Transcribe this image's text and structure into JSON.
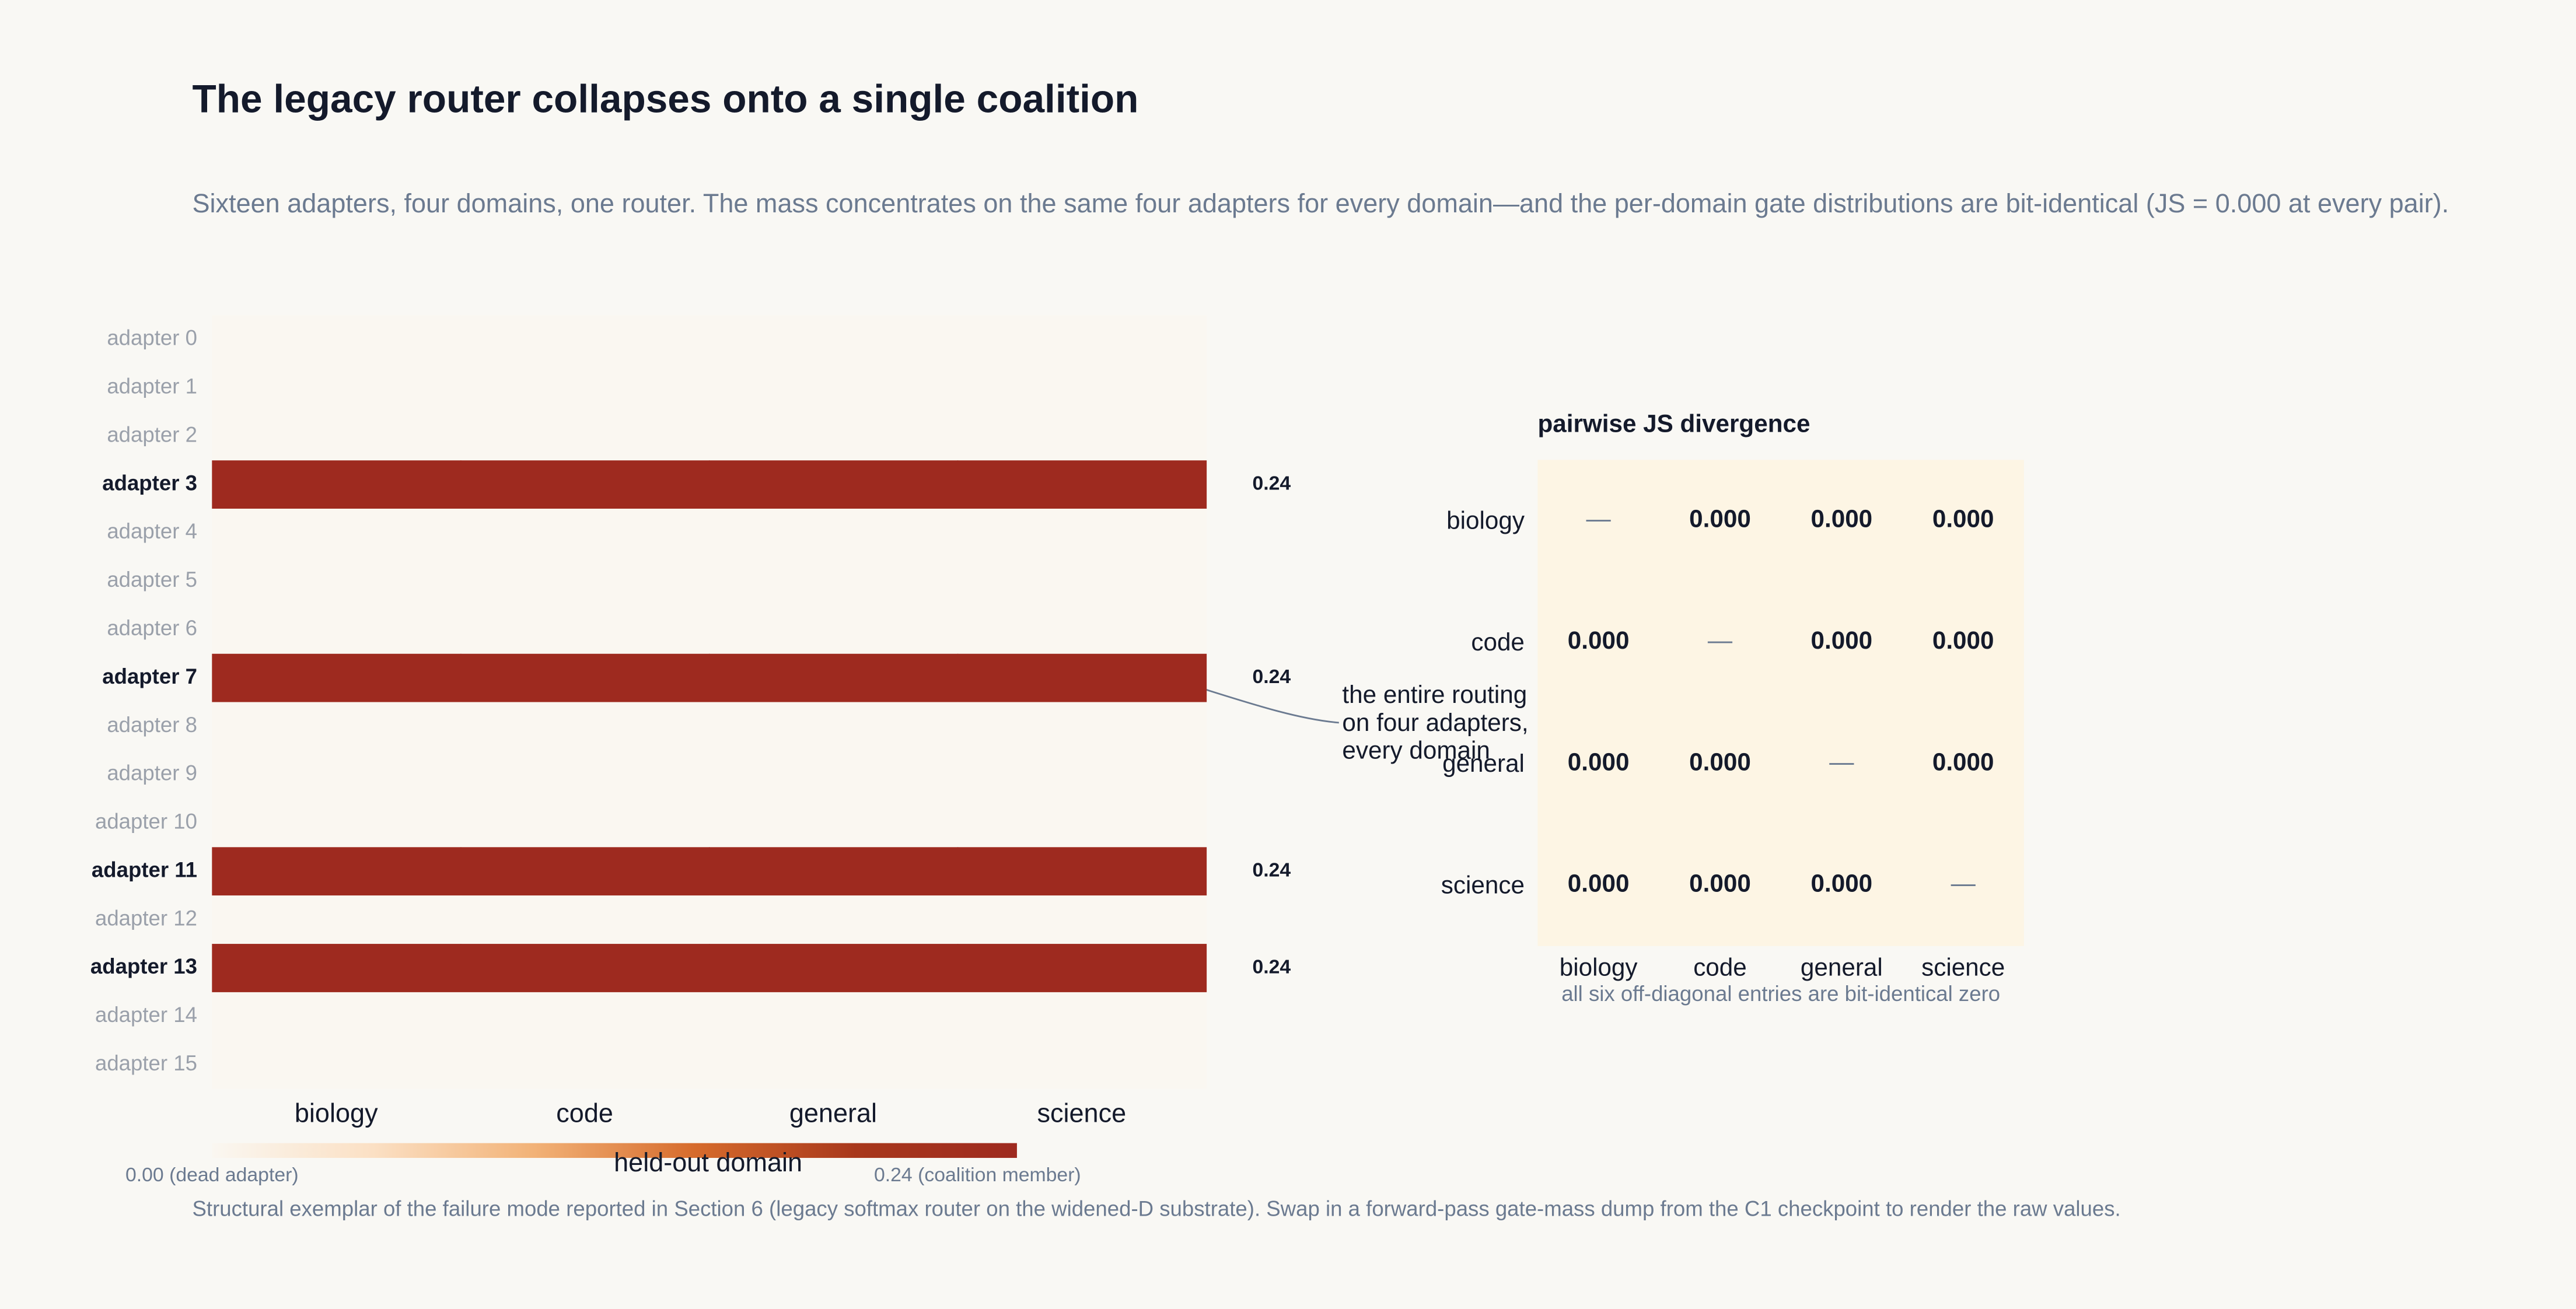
{
  "title": "The legacy router collapses onto a single coalition",
  "subtitle": "Sixteen adapters, four domains, one router. The mass concentrates on the same four adapters for every domain—and the per-domain gate distributions are bit-identical (JS = 0.000 at every pair).",
  "footnote": "Structural exemplar of the failure mode reported in Section 6 (legacy softmax router on the widened-D substrate). Swap in a forward-pass gate-mass dump from the C1 checkpoint to render the raw values.",
  "chart_data": [
    {
      "type": "heatmap",
      "xlabel": "held-out domain",
      "x": [
        "biology",
        "code",
        "general",
        "science"
      ],
      "y": [
        "adapter 0",
        "adapter 1",
        "adapter 2",
        "adapter 3",
        "adapter 4",
        "adapter 5",
        "adapter 6",
        "adapter 7",
        "adapter 8",
        "adapter 9",
        "adapter 10",
        "adapter 11",
        "adapter 12",
        "adapter 13",
        "adapter 14",
        "adapter 15"
      ],
      "values": [
        [
          0,
          0,
          0,
          0
        ],
        [
          0,
          0,
          0,
          0
        ],
        [
          0,
          0,
          0,
          0
        ],
        [
          0.24,
          0.24,
          0.24,
          0.24
        ],
        [
          0,
          0,
          0,
          0
        ],
        [
          0,
          0,
          0,
          0
        ],
        [
          0,
          0,
          0,
          0
        ],
        [
          0.24,
          0.24,
          0.24,
          0.24
        ],
        [
          0,
          0,
          0,
          0
        ],
        [
          0,
          0,
          0,
          0
        ],
        [
          0,
          0,
          0,
          0
        ],
        [
          0.24,
          0.24,
          0.24,
          0.24
        ],
        [
          0,
          0,
          0,
          0
        ],
        [
          0.24,
          0.24,
          0.24,
          0.24
        ],
        [
          0,
          0,
          0,
          0
        ],
        [
          0,
          0,
          0,
          0
        ]
      ],
      "row_labels": [
        null,
        null,
        null,
        0.24,
        null,
        null,
        null,
        0.24,
        null,
        null,
        null,
        0.24,
        null,
        0.24,
        null,
        null
      ],
      "zlim": [
        0,
        0.24
      ],
      "colorscale": [
        "#faf7f1",
        "#fbe0c4",
        "#f2b277",
        "#d66b2c",
        "#a8381c",
        "#9e2a1f"
      ],
      "colorbar_labels": [
        "0.00 (dead adapter)",
        "0.24 (coalition member)"
      ],
      "annotation": [
        "the entire routing",
        "on four adapters,",
        "every domain"
      ]
    },
    {
      "type": "matrix",
      "title": "pairwise JS divergence",
      "categories": [
        "biology",
        "code",
        "general",
        "science"
      ],
      "values": [
        [
          null,
          0,
          0,
          0
        ],
        [
          0,
          null,
          0,
          0
        ],
        [
          0,
          0,
          null,
          0
        ],
        [
          0,
          0,
          0,
          null
        ]
      ],
      "value_labels": [
        [
          "—",
          "0.000",
          "0.000",
          "0.000"
        ],
        [
          "0.000",
          "—",
          "0.000",
          "0.000"
        ],
        [
          "0.000",
          "0.000",
          "—",
          "0.000"
        ],
        [
          "0.000",
          "0.000",
          "0.000",
          "—"
        ]
      ],
      "caption": "all six off-diagonal entries are bit-identical zero",
      "background": "#fdf5e4"
    }
  ]
}
